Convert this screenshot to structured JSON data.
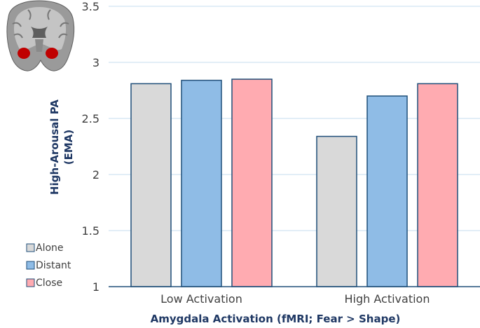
{
  "chart_data": {
    "type": "bar",
    "categories": [
      "Low Activation",
      "High Activation"
    ],
    "series": [
      {
        "name": "Alone",
        "values": [
          2.81,
          2.34
        ],
        "color": "#d9d9d9"
      },
      {
        "name": "Distant",
        "values": [
          2.84,
          2.7
        ],
        "color": "#8fbce6"
      },
      {
        "name": "Close",
        "values": [
          2.85,
          2.81
        ],
        "color": "#ffabb1"
      }
    ],
    "title": "",
    "xlabel": "Amygdala Activation (fMRI; Fear > Shape)",
    "ylabel_lines": [
      "High-Arousal PA",
      "(EMA)"
    ],
    "ylim": [
      1,
      3.5
    ],
    "yticks": [
      1,
      1.5,
      2,
      2.5,
      3,
      3.5
    ],
    "ytick_labels": [
      "1",
      "1.5",
      "2",
      "2.5",
      "3",
      "3.5"
    ],
    "grid": true,
    "legend": "bottom-left",
    "bar_outline_color": "#1f4e79",
    "grid_color": "#c5dcef",
    "inset_image": "brain-coronal-slice-amygdala"
  }
}
